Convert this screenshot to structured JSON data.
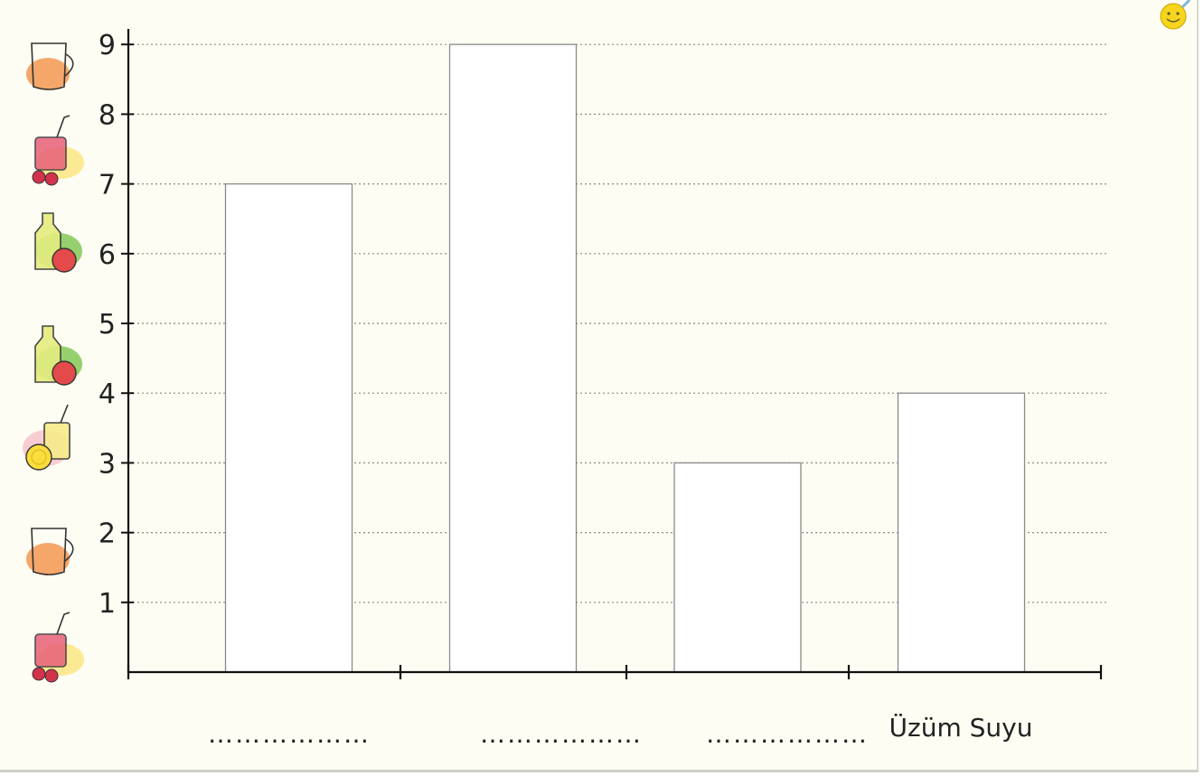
{
  "colors": {
    "page_bg": "#fefdf3",
    "bar_fill": "#ffffff",
    "bar_stroke": "#8a8a8a",
    "axis": "#111111",
    "grid": "#8a8a8a",
    "smiley": "#f6d51c"
  },
  "icons": [
    "orange-juice-jug-icon",
    "cherry-juice-glass-icon",
    "apple-juice-bottle-icon",
    "apple-juice-bottle-icon",
    "lemonade-glass-icon",
    "orange-juice-jug-icon",
    "cherry-juice-glass-icon"
  ],
  "corner_icon": "smiley-face-icon",
  "chart_data": {
    "type": "bar",
    "categories": [
      "",
      "",
      "",
      "Üzüm Suyu"
    ],
    "blank_placeholder": "………………",
    "values": [
      7,
      9,
      3,
      4
    ],
    "yticks": [
      1,
      2,
      3,
      4,
      5,
      6,
      7,
      8,
      9
    ],
    "ylim": [
      0,
      9
    ],
    "grid": true,
    "title": "",
    "xlabel": "",
    "ylabel": ""
  }
}
